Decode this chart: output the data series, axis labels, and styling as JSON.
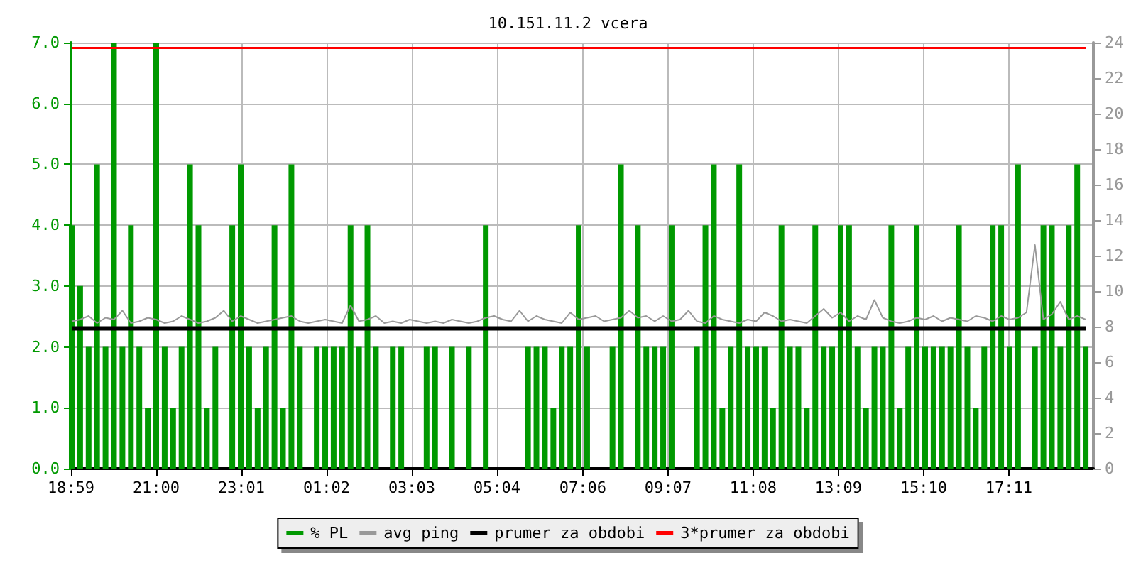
{
  "chart_data": {
    "type": "bar",
    "title": "10.151.11.2 vcera",
    "x": [
      "--01-01T19:00",
      "--01-01T19:12",
      "--01-01T19:24",
      "--01-01T19:36",
      "--01-01T19:48",
      "--01-01T20:00",
      "--01-01T20:12",
      "--01-01T20:24",
      "--01-01T20:36",
      "--01-01T20:48",
      "--01-01T21:00",
      "--01-01T21:12",
      "--01-01T21:24",
      "--01-01T21:36",
      "--01-01T21:48",
      "--01-01T22:00",
      "--01-01T22:12",
      "--01-01T22:24",
      "--01-01T22:36",
      "--01-01T22:48",
      "--01-01T23:00",
      "--01-01T23:12",
      "--01-01T23:24",
      "--01-01T23:36",
      "--01-01T23:48",
      "--01-02T00:00",
      "--01-02T00:12",
      "--01-02T00:24",
      "--01-02T00:36",
      "--01-02T00:48",
      "--01-02T01:00",
      "--01-02T01:12",
      "--01-02T01:24",
      "--01-02T01:36",
      "--01-02T01:48",
      "--01-02T02:00",
      "--01-02T02:12",
      "--01-02T02:24",
      "--01-02T02:36",
      "--01-02T02:48",
      "--01-02T03:00",
      "--01-02T03:12",
      "--01-02T03:24",
      "--01-02T03:36",
      "--01-02T03:48",
      "--01-02T04:00",
      "--01-02T04:12",
      "--01-02T04:24",
      "--01-02T04:36",
      "--01-02T04:48",
      "--01-02T05:00",
      "--01-02T05:12",
      "--01-02T05:24",
      "--01-02T05:36",
      "--01-02T05:48",
      "--01-02T06:00",
      "--01-02T06:12",
      "--01-02T06:24",
      "--01-02T06:36",
      "--01-02T06:48",
      "--01-02T07:00",
      "--01-02T07:12",
      "--01-02T07:24",
      "--01-02T07:36",
      "--01-02T07:48",
      "--01-02T08:00",
      "--01-02T08:12",
      "--01-02T08:24",
      "--01-02T08:36",
      "--01-02T08:48",
      "--01-02T09:00",
      "--01-02T09:12",
      "--01-02T09:24",
      "--01-02T09:36",
      "--01-02T09:48",
      "--01-02T10:00",
      "--01-02T10:12",
      "--01-02T10:24",
      "--01-02T10:36",
      "--01-02T10:48",
      "--01-02T11:00",
      "--01-02T11:12",
      "--01-02T11:24",
      "--01-02T11:36",
      "--01-02T11:48",
      "--01-02T12:00",
      "--01-02T12:12",
      "--01-02T12:24",
      "--01-02T12:36",
      "--01-02T12:48",
      "--01-02T13:00",
      "--01-02T13:12",
      "--01-02T13:24",
      "--01-02T13:36",
      "--01-02T13:48",
      "--01-02T14:00",
      "--01-02T14:12",
      "--01-02T14:24",
      "--01-02T14:36",
      "--01-02T14:48",
      "--01-02T15:00",
      "--01-02T15:12",
      "--01-02T15:24",
      "--01-02T15:36",
      "--01-02T15:48",
      "--01-02T16:00",
      "--01-02T16:12",
      "--01-02T16:24",
      "--01-02T16:36",
      "--01-02T16:48",
      "--01-02T17:00",
      "--01-02T17:12",
      "--01-02T17:24",
      "--01-02T17:36",
      "--01-02T17:48",
      "--01-02T18:00",
      "--01-02T18:12",
      "--01-02T18:24",
      "--01-02T18:36",
      "--01-02T18:48",
      "--01-02T19:00"
    ],
    "series": [
      {
        "name": "% PL",
        "color": "#009900",
        "values": [
          4,
          3,
          2,
          5,
          2,
          7,
          2,
          4,
          2,
          1,
          7,
          2,
          1,
          2,
          5,
          4,
          1,
          2,
          0,
          4,
          5,
          2,
          1,
          2,
          4,
          1,
          5,
          2,
          0,
          2,
          2,
          2,
          2,
          4,
          2,
          4,
          2,
          0,
          2,
          2,
          0,
          0,
          2,
          2,
          0,
          2,
          0,
          2,
          0,
          4,
          0,
          0,
          0,
          0,
          2,
          2,
          2,
          1,
          2,
          2,
          4,
          2,
          0,
          0,
          2,
          5,
          0,
          4,
          2,
          2,
          2,
          4,
          0,
          0,
          2,
          4,
          5,
          1,
          2,
          5,
          2,
          2,
          2,
          1,
          4,
          2,
          2,
          1,
          4,
          2,
          2,
          4,
          4,
          2,
          1,
          2,
          2,
          4,
          1,
          2,
          4,
          2,
          2,
          2,
          2,
          4,
          2,
          1,
          2,
          4,
          4,
          2,
          5,
          0,
          2,
          4,
          4,
          2,
          4,
          5,
          2
        ]
      },
      {
        "name": "avg ping",
        "type": "line",
        "axis": "y2",
        "color": "#999999",
        "values": [
          8.3,
          8.4,
          8.6,
          8.2,
          8.5,
          8.4,
          8.9,
          8.2,
          8.3,
          8.5,
          8.4,
          8.2,
          8.3,
          8.6,
          8.4,
          8.2,
          8.3,
          8.5,
          8.9,
          8.3,
          8.6,
          8.4,
          8.2,
          8.3,
          8.4,
          8.5,
          8.6,
          8.3,
          8.2,
          8.3,
          8.4,
          8.3,
          8.2,
          9.2,
          8.3,
          8.4,
          8.6,
          8.2,
          8.3,
          8.2,
          8.4,
          8.3,
          8.2,
          8.3,
          8.2,
          8.4,
          8.3,
          8.2,
          8.3,
          8.5,
          8.6,
          8.4,
          8.3,
          8.9,
          8.3,
          8.6,
          8.4,
          8.3,
          8.2,
          8.8,
          8.4,
          8.5,
          8.6,
          8.3,
          8.4,
          8.5,
          8.9,
          8.5,
          8.6,
          8.3,
          8.6,
          8.3,
          8.4,
          8.9,
          8.3,
          8.2,
          8.6,
          8.4,
          8.3,
          8.2,
          8.4,
          8.3,
          8.8,
          8.6,
          8.3,
          8.4,
          8.3,
          8.2,
          8.6,
          9.0,
          8.5,
          8.8,
          8.3,
          8.6,
          8.4,
          9.5,
          8.5,
          8.3,
          8.2,
          8.3,
          8.5,
          8.4,
          8.6,
          8.3,
          8.5,
          8.4,
          8.3,
          8.6,
          8.5,
          8.3,
          8.6,
          8.4,
          8.5,
          8.8,
          12.6,
          8.4,
          8.7,
          9.4,
          8.4,
          8.6,
          8.4
        ]
      },
      {
        "name": "prumer za obdobi",
        "type": "line",
        "axis": "y2",
        "color": "#000000",
        "values": [
          7.9,
          7.9,
          7.9,
          7.9,
          7.9,
          7.9,
          7.9,
          7.9,
          7.9,
          7.9,
          7.9,
          7.9,
          7.9,
          7.9,
          7.9,
          7.9,
          7.9,
          7.9,
          7.9,
          7.9,
          7.9,
          7.9,
          7.9,
          7.9,
          7.9,
          7.9,
          7.9,
          7.9,
          7.9,
          7.9,
          7.9,
          7.9,
          7.9,
          7.9,
          7.9,
          7.9,
          7.9,
          7.9,
          7.9,
          7.9,
          7.9,
          7.9,
          7.9,
          7.9,
          7.9,
          7.9,
          7.9,
          7.9,
          7.9,
          7.9,
          7.9,
          7.9,
          7.9,
          7.9,
          7.9,
          7.9,
          7.9,
          7.9,
          7.9,
          7.9,
          7.9,
          7.9,
          7.9,
          7.9,
          7.9,
          7.9,
          7.9,
          7.9,
          7.9,
          7.9,
          7.9,
          7.9,
          7.9,
          7.9,
          7.9,
          7.9,
          7.9,
          7.9,
          7.9,
          7.9,
          7.9,
          7.9,
          7.9,
          7.9,
          7.9,
          7.9,
          7.9,
          7.9,
          7.9,
          7.9,
          7.9,
          7.9,
          7.9,
          7.9,
          7.9,
          7.9,
          7.9,
          7.9,
          7.9,
          7.9,
          7.9,
          7.9,
          7.9,
          7.9,
          7.9,
          7.9,
          7.9,
          7.9,
          7.9,
          7.9,
          7.9,
          7.9,
          7.9,
          7.9,
          7.9,
          7.9,
          7.9,
          7.9,
          7.9,
          7.9,
          7.9
        ]
      },
      {
        "name": "3*prumer za obdobi",
        "type": "line",
        "axis": "y2",
        "color": "#ff0000",
        "values": [
          23.7,
          23.7,
          23.7,
          23.7,
          23.7,
          23.7,
          23.7,
          23.7,
          23.7,
          23.7,
          23.7,
          23.7,
          23.7,
          23.7,
          23.7,
          23.7,
          23.7,
          23.7,
          23.7,
          23.7,
          23.7,
          23.7,
          23.7,
          23.7,
          23.7,
          23.7,
          23.7,
          23.7,
          23.7,
          23.7,
          23.7,
          23.7,
          23.7,
          23.7,
          23.7,
          23.7,
          23.7,
          23.7,
          23.7,
          23.7,
          23.7,
          23.7,
          23.7,
          23.7,
          23.7,
          23.7,
          23.7,
          23.7,
          23.7,
          23.7,
          23.7,
          23.7,
          23.7,
          23.7,
          23.7,
          23.7,
          23.7,
          23.7,
          23.7,
          23.7,
          23.7,
          23.7,
          23.7,
          23.7,
          23.7,
          23.7,
          23.7,
          23.7,
          23.7,
          23.7,
          23.7,
          23.7,
          23.7,
          23.7,
          23.7,
          23.7,
          23.7,
          23.7,
          23.7,
          23.7,
          23.7,
          23.7,
          23.7,
          23.7,
          23.7,
          23.7,
          23.7,
          23.7,
          23.7,
          23.7,
          23.7,
          23.7,
          23.7,
          23.7,
          23.7,
          23.7,
          23.7,
          23.7,
          23.7,
          23.7,
          23.7,
          23.7,
          23.7,
          23.7,
          23.7,
          23.7,
          23.7,
          23.7,
          23.7,
          23.7,
          23.7,
          23.7,
          23.7,
          23.7,
          23.7,
          23.7,
          23.7,
          23.7,
          23.7,
          23.7,
          23.7
        ]
      }
    ],
    "xlim": [
      "--01-01T18:59",
      "--01-02T19:11"
    ],
    "xticks": [
      {
        "value": "--01-01T18:59",
        "label": "18:59"
      },
      {
        "value": "--01-01T21:00",
        "label": "21:00"
      },
      {
        "value": "--01-01T23:01",
        "label": "23:01"
      },
      {
        "value": "--01-02T01:02",
        "label": "01:02"
      },
      {
        "value": "--01-02T03:03",
        "label": "03:03"
      },
      {
        "value": "--01-02T05:04",
        "label": "05:04"
      },
      {
        "value": "--01-02T07:06",
        "label": "07:06"
      },
      {
        "value": "--01-02T09:07",
        "label": "09:07"
      },
      {
        "value": "--01-02T11:08",
        "label": "11:08"
      },
      {
        "value": "--01-02T13:09",
        "label": "13:09"
      },
      {
        "value": "--01-02T15:10",
        "label": "15:10"
      },
      {
        "value": "--01-02T17:11",
        "label": "17:11"
      }
    ],
    "ylim": [
      0,
      7
    ],
    "yticks": [
      {
        "value": 0,
        "label": "0.0"
      },
      {
        "value": 1,
        "label": "1.0"
      },
      {
        "value": 2,
        "label": "2.0"
      },
      {
        "value": 3,
        "label": "3.0"
      },
      {
        "value": 4,
        "label": "4.0"
      },
      {
        "value": 5,
        "label": "5.0"
      },
      {
        "value": 6,
        "label": "6.0"
      },
      {
        "value": 7,
        "label": "7.0"
      }
    ],
    "y2lim": [
      0,
      24
    ],
    "y2ticks": [
      0,
      2,
      4,
      6,
      8,
      10,
      12,
      14,
      16,
      18,
      20,
      22,
      24
    ],
    "grid": true,
    "legend": "bottom",
    "marker": "none",
    "line_style": "solid"
  }
}
